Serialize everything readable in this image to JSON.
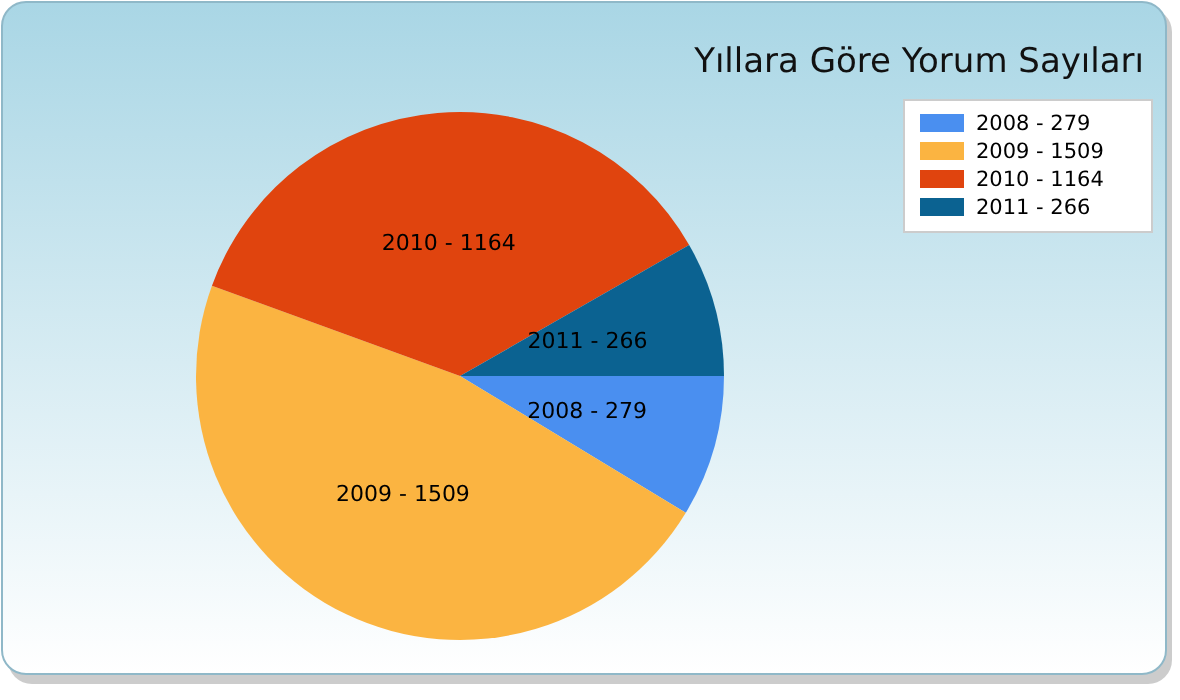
{
  "chart_data": {
    "type": "pie",
    "title": "Yıllara Göre Yorum Sayıları",
    "categories": [
      "2008 - 279",
      "2009 - 1509",
      "2010 - 1164",
      "2011 - 266"
    ],
    "values": [
      8.67,
      46.89,
      36.17,
      8.27
    ],
    "colors": [
      "#4a8ff0",
      "#fbb441",
      "#e0440e",
      "#0b6291"
    ],
    "legend": "top right"
  }
}
